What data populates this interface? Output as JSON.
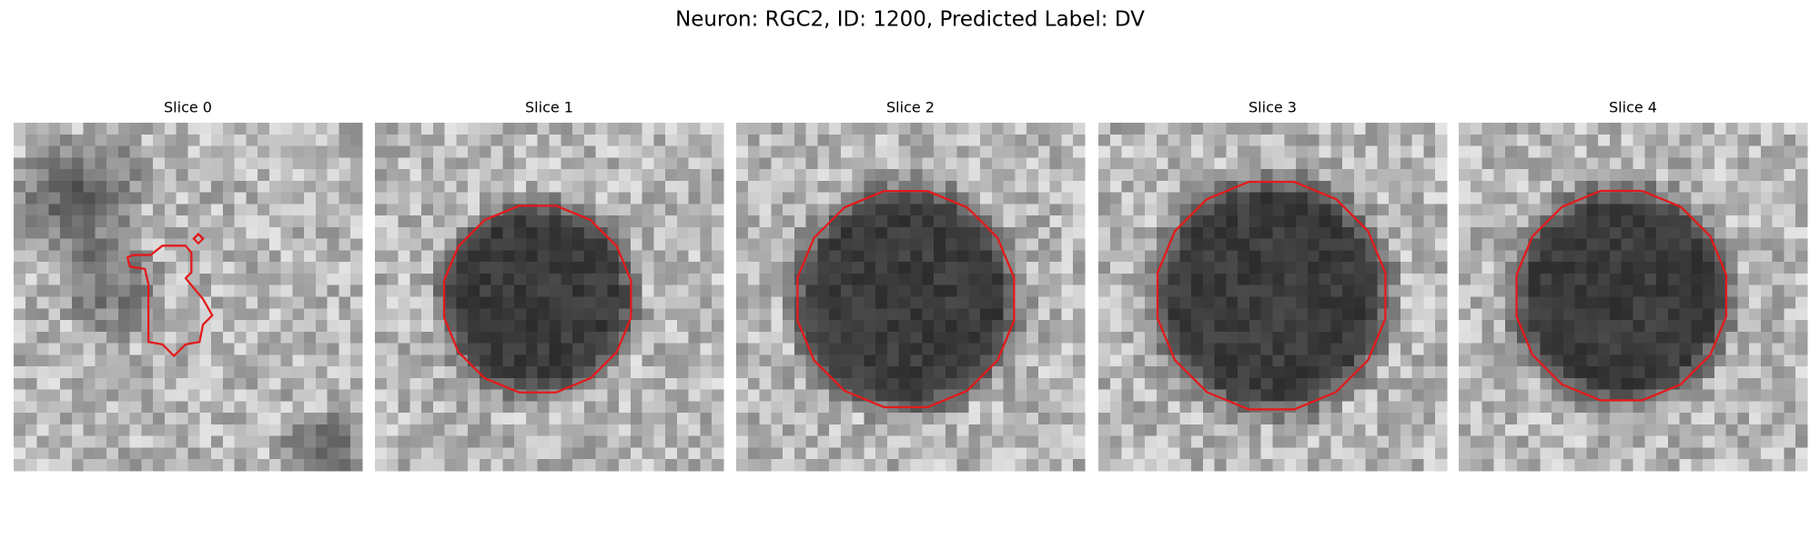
{
  "title": "Neuron: RGC2, ID: 1200, Predicted Label: DV",
  "panels": [
    {
      "title": "Slice 0"
    },
    {
      "title": "Slice 1"
    },
    {
      "title": "Slice 2"
    },
    {
      "title": "Slice 3"
    },
    {
      "title": "Slice 4"
    }
  ]
}
